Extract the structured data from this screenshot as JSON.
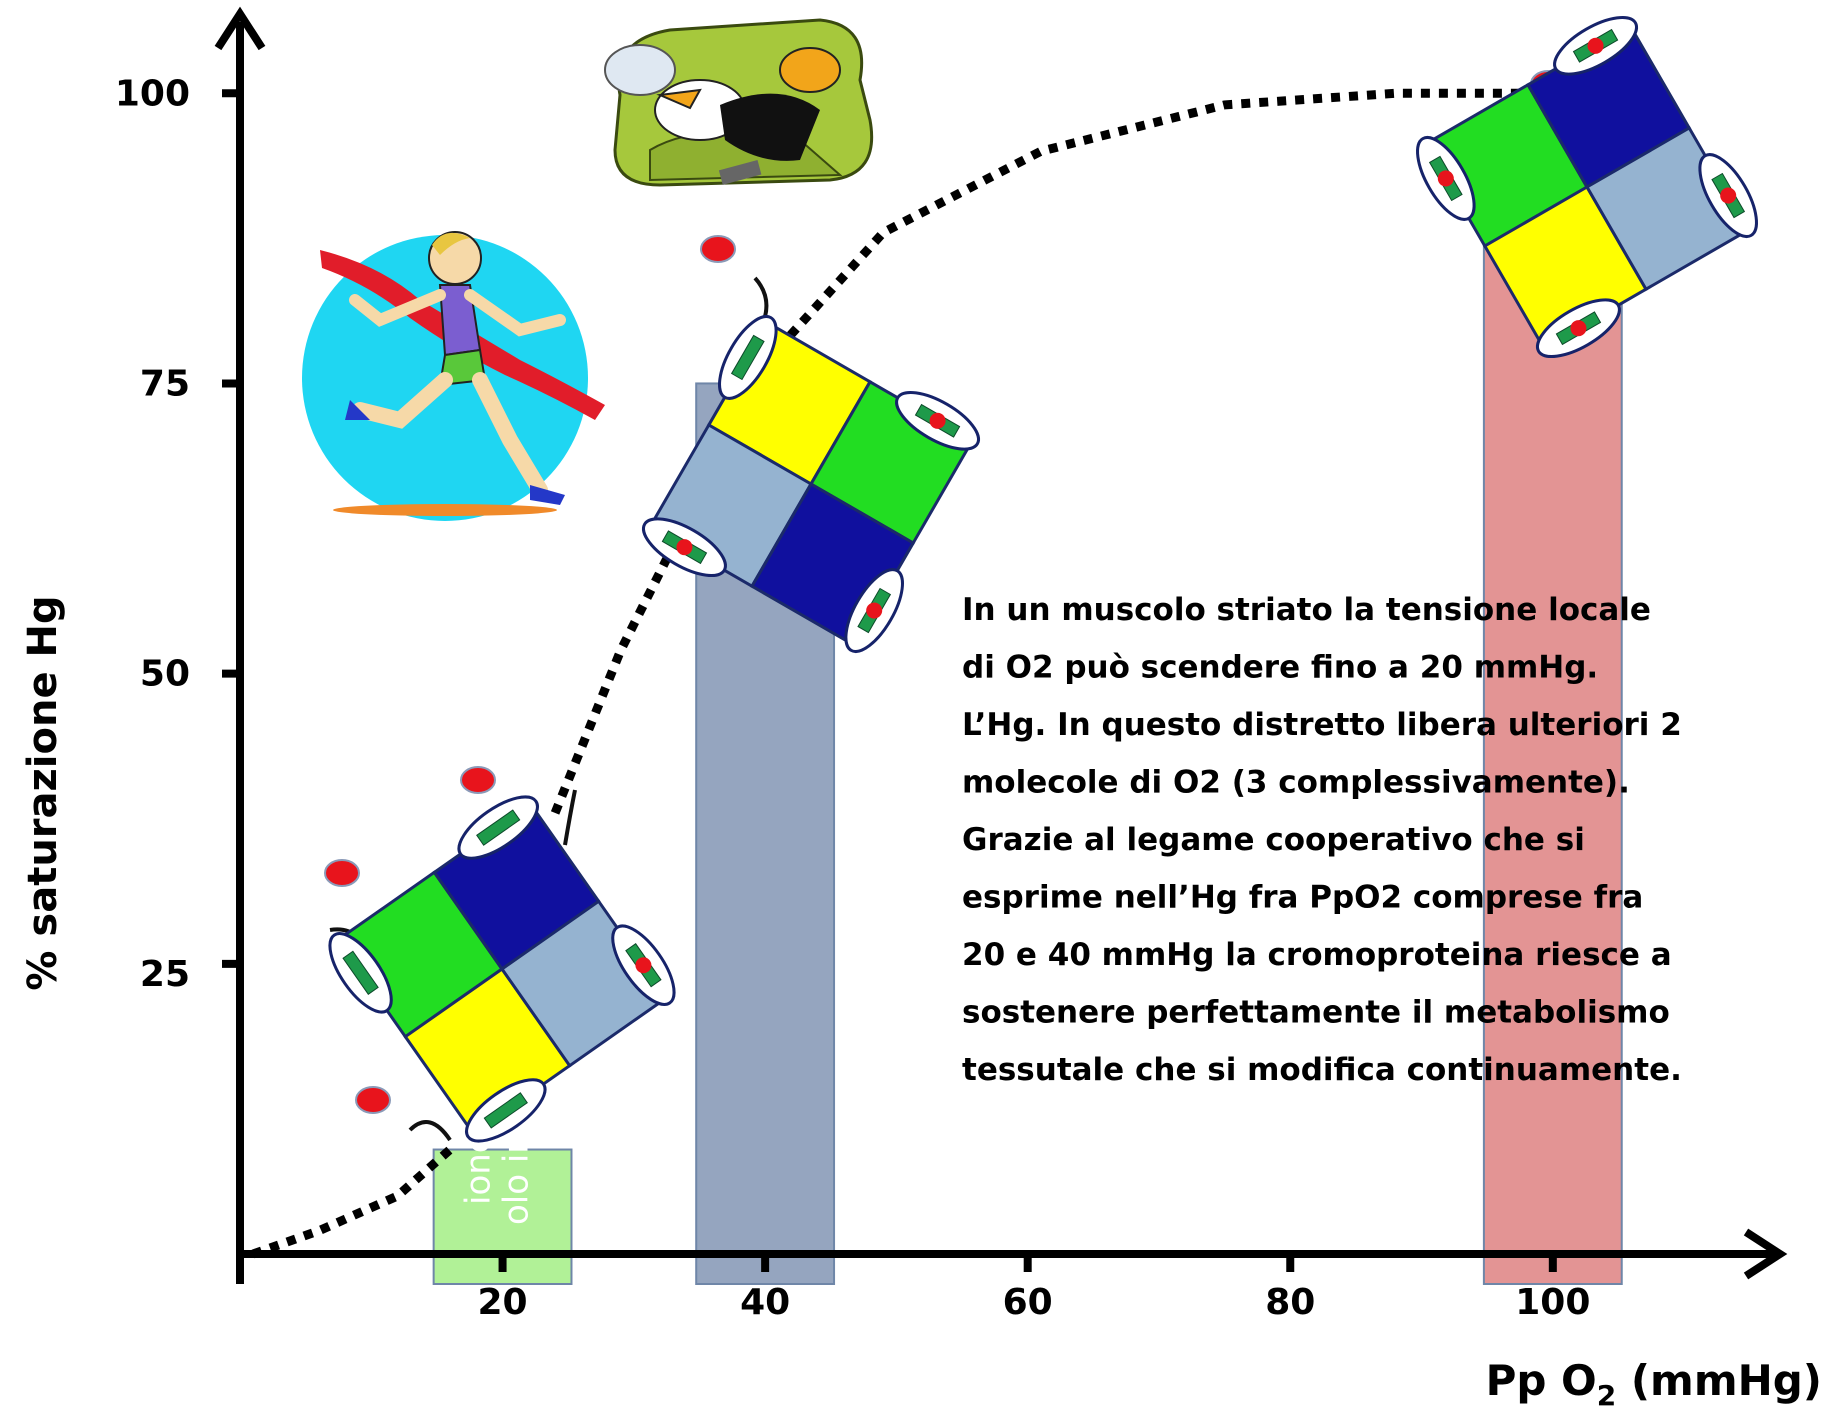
{
  "chart_data": {
    "type": "line",
    "ylabel": "% saturazione Hg",
    "xlabel": [
      "Pp O",
      "2",
      " (mmHg)"
    ],
    "xlim": [
      0,
      117
    ],
    "ylim": [
      0,
      107
    ],
    "xticks": [
      20,
      40,
      60,
      80,
      100
    ],
    "yticks": [
      25,
      50,
      75,
      100
    ],
    "x": [
      1,
      6,
      12,
      16,
      null,
      24,
      29,
      33,
      null,
      41,
      49,
      61,
      75,
      88,
      99
    ],
    "values": [
      0,
      2,
      5,
      9,
      null,
      38,
      52,
      61,
      null,
      78,
      88,
      95,
      99,
      100,
      100
    ],
    "color": "#000000",
    "bars": {
      "x": [
        20,
        40,
        100
      ],
      "values": [
        9,
        75,
        88
      ],
      "colors": [
        "#a8f08c",
        "#8a9bb8",
        "#e08888"
      ]
    },
    "annotations": [
      "olo in",
      "ione"
    ],
    "text": [
      "In un muscolo striato la tensione locale",
      "di O2 può scendere fino a 20 mmHg.",
      "L’Hg. In questo distretto libera ulteriori 2",
      "molecole di O2 (3 complessivamente).",
      "Grazie al legame cooperativo che si",
      "esprime nell’Hg fra PpO2 comprese fra",
      "20 e 40 mmHg la cromoproteina riesce a",
      "sostenere perfettamente il metabolismo",
      "tessutale che si modifica continuamente."
    ]
  }
}
